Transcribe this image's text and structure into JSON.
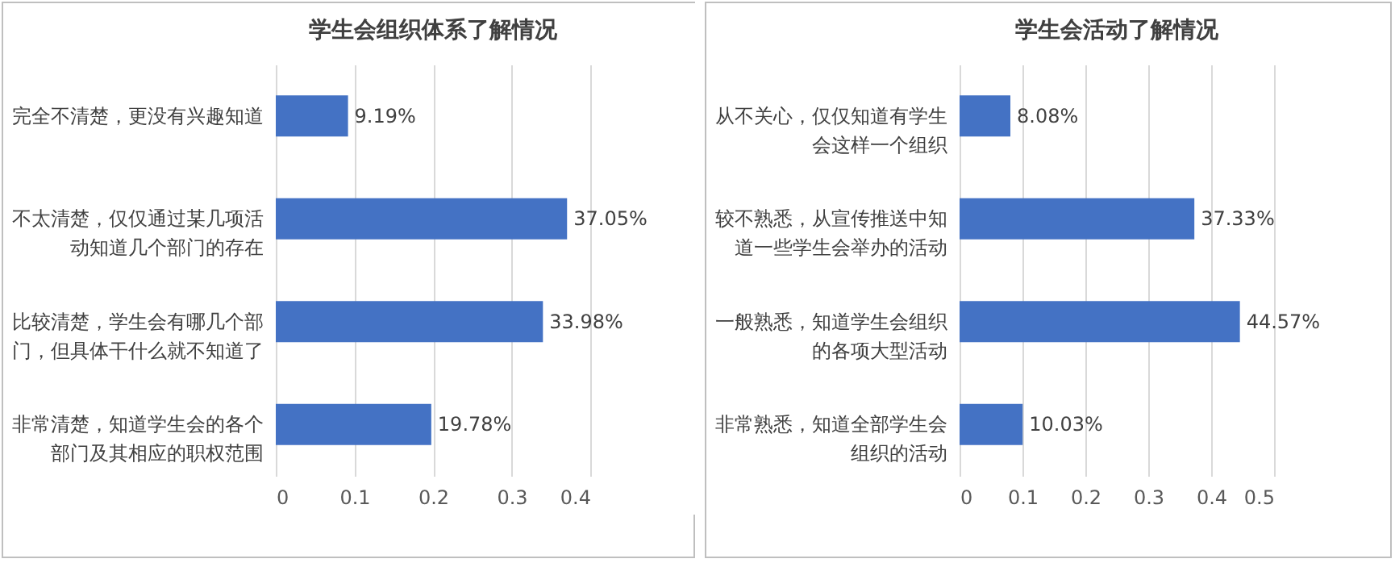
{
  "chart_data": [
    {
      "type": "bar",
      "orientation": "horizontal",
      "title": "学生会组织体系了解情况",
      "categories": [
        "完全不清楚，更没有兴趣知道",
        "不太清楚，仅仅通过某几项活动知道几个部门的存在",
        "比较清楚，学生会有哪几个部门，但具体干什么就不知道了",
        "非常清楚，知道学生会的各个部门及其相应的职权范围"
      ],
      "values": [
        0.0919,
        0.3705,
        0.3398,
        0.1978
      ],
      "value_labels": [
        "9.19%",
        "37.05%",
        "33.98%",
        "19.78%"
      ],
      "color": "#4472c4",
      "xlim": [
        0,
        0.4
      ],
      "xticks": [
        0,
        0.1,
        0.2,
        0.3,
        0.4
      ],
      "grid": "x"
    },
    {
      "type": "bar",
      "orientation": "horizontal",
      "title": "学生会活动了解情况",
      "categories": [
        "从不关心，仅仅知道有学生会这样一个组织",
        "较不熟悉，从宣传推送中知道一些学生会举办的活动",
        "一般熟悉，知道学生会组织的各项大型活动",
        "非常熟悉，知道全部学生会组织的活动"
      ],
      "values": [
        0.0808,
        0.3733,
        0.4457,
        0.1003
      ],
      "value_labels": [
        "8.08%",
        "37.33%",
        "44.57%",
        "10.03%"
      ],
      "color": "#4472c4",
      "xlim": [
        0,
        0.5
      ],
      "xticks": [
        0,
        0.1,
        0.2,
        0.3,
        0.4,
        0.5
      ],
      "grid": "x"
    }
  ]
}
